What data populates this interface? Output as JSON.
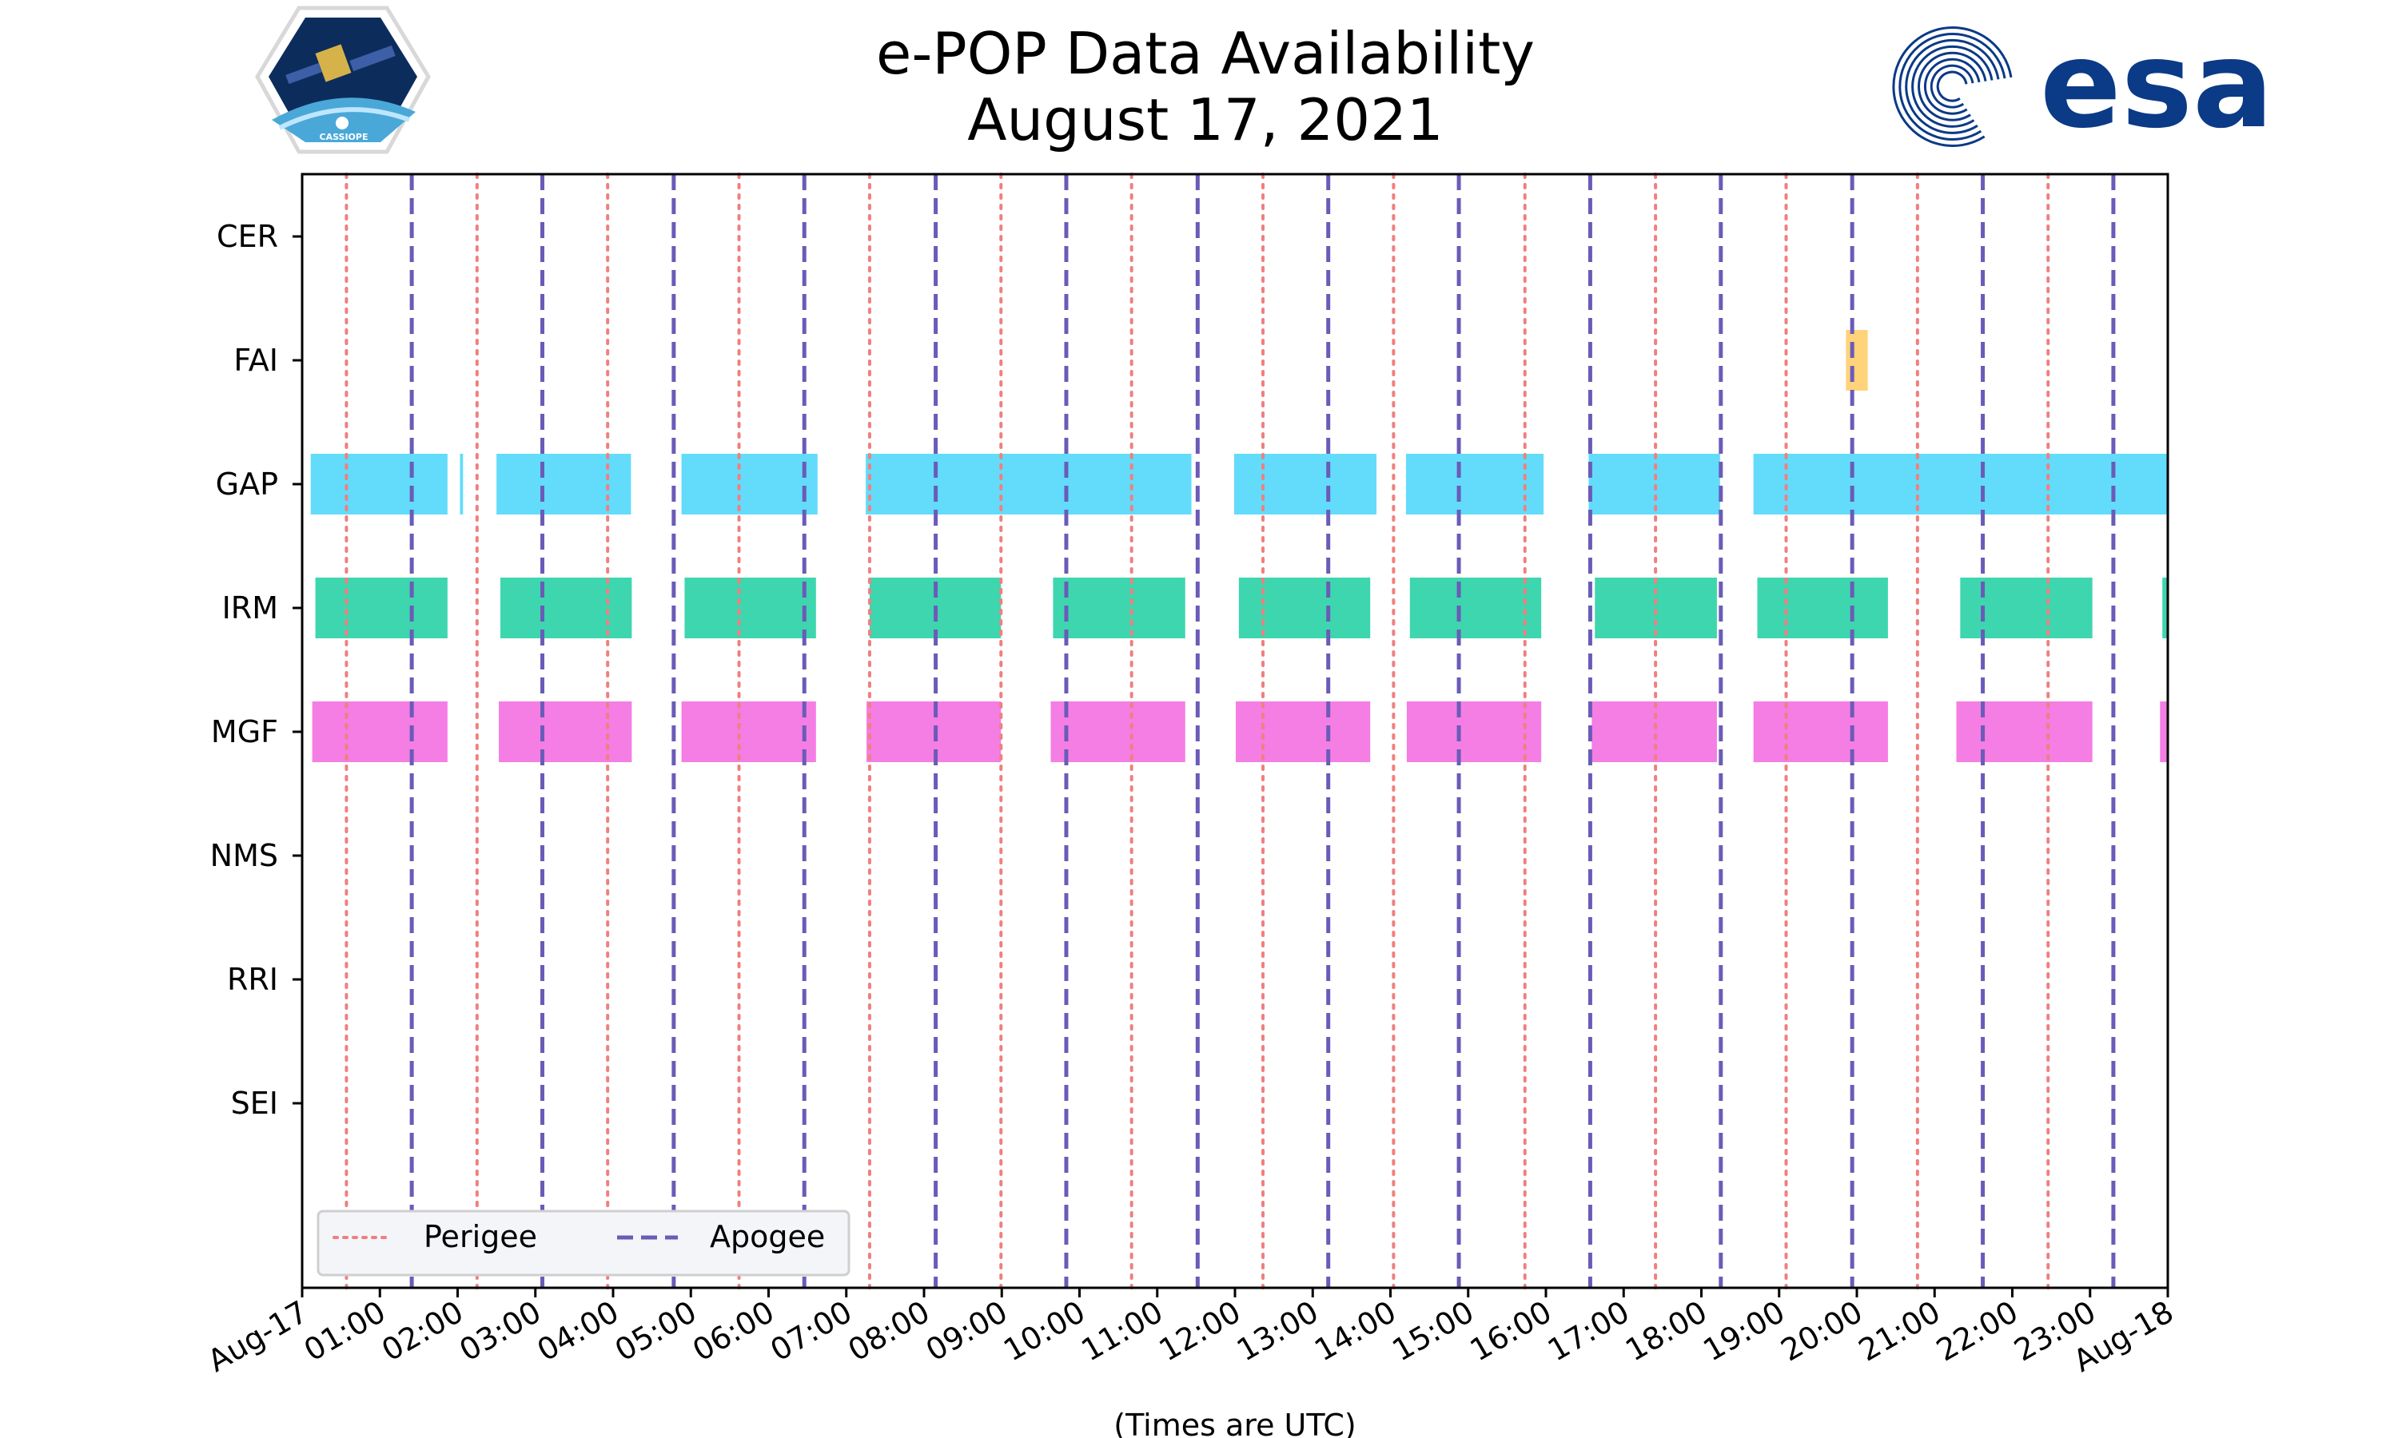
{
  "header": {
    "left_logo": {
      "name": "CASSIOPE mission patch",
      "text": "CASSIOPE"
    },
    "right_logo": {
      "name": "ESA logo",
      "text": "esa"
    }
  },
  "chart_data": {
    "type": "timeline",
    "title": [
      "e-POP Data Availability",
      "August 17, 2021"
    ],
    "xlabel": "(Times are UTC)",
    "x_range_hours": [
      0,
      24
    ],
    "x_ticks": [
      {
        "h": 0,
        "label": "Aug-17"
      },
      {
        "h": 1,
        "label": "01:00"
      },
      {
        "h": 2,
        "label": "02:00"
      },
      {
        "h": 3,
        "label": "03:00"
      },
      {
        "h": 4,
        "label": "04:00"
      },
      {
        "h": 5,
        "label": "05:00"
      },
      {
        "h": 6,
        "label": "06:00"
      },
      {
        "h": 7,
        "label": "07:00"
      },
      {
        "h": 8,
        "label": "08:00"
      },
      {
        "h": 9,
        "label": "09:00"
      },
      {
        "h": 10,
        "label": "10:00"
      },
      {
        "h": 11,
        "label": "11:00"
      },
      {
        "h": 12,
        "label": "12:00"
      },
      {
        "h": 13,
        "label": "13:00"
      },
      {
        "h": 14,
        "label": "14:00"
      },
      {
        "h": 15,
        "label": "15:00"
      },
      {
        "h": 16,
        "label": "16:00"
      },
      {
        "h": 17,
        "label": "17:00"
      },
      {
        "h": 18,
        "label": "18:00"
      },
      {
        "h": 19,
        "label": "19:00"
      },
      {
        "h": 20,
        "label": "20:00"
      },
      {
        "h": 21,
        "label": "21:00"
      },
      {
        "h": 22,
        "label": "22:00"
      },
      {
        "h": 23,
        "label": "23:00"
      },
      {
        "h": 24,
        "label": "Aug-18"
      }
    ],
    "instruments": [
      "CER",
      "FAI",
      "GAP",
      "IRM",
      "MGF",
      "NMS",
      "RRI",
      "SEI"
    ],
    "series": [
      {
        "name": "CER",
        "color": "#cccccc",
        "intervals": []
      },
      {
        "name": "FAI",
        "color": "#ffd37a",
        "intervals": [
          [
            19.86,
            20.14
          ]
        ]
      },
      {
        "name": "GAP",
        "color": "#62dcfa",
        "intervals": [
          [
            0.11,
            1.87
          ],
          [
            2.03,
            2.07
          ],
          [
            2.5,
            4.23
          ],
          [
            4.88,
            6.63
          ],
          [
            7.25,
            11.44
          ],
          [
            11.99,
            13.82
          ],
          [
            14.2,
            15.97
          ],
          [
            16.55,
            18.24
          ],
          [
            18.67,
            24.0
          ]
        ]
      },
      {
        "name": "IRM",
        "color": "#3ed6ae",
        "intervals": [
          [
            0.17,
            1.87
          ],
          [
            2.55,
            4.24
          ],
          [
            4.92,
            6.61
          ],
          [
            7.3,
            8.99
          ],
          [
            9.66,
            11.36
          ],
          [
            12.05,
            13.74
          ],
          [
            14.25,
            15.94
          ],
          [
            16.63,
            18.2
          ],
          [
            18.72,
            20.4
          ],
          [
            21.33,
            23.03
          ],
          [
            23.93,
            24.0
          ]
        ]
      },
      {
        "name": "MGF",
        "color": "#f47ee4",
        "intervals": [
          [
            0.13,
            1.87
          ],
          [
            2.53,
            4.24
          ],
          [
            4.88,
            6.61
          ],
          [
            7.26,
            8.99
          ],
          [
            9.63,
            11.36
          ],
          [
            12.01,
            13.74
          ],
          [
            14.21,
            15.94
          ],
          [
            16.59,
            18.2
          ],
          [
            18.67,
            20.4
          ],
          [
            21.28,
            23.03
          ],
          [
            23.9,
            24.0
          ]
        ]
      },
      {
        "name": "NMS",
        "color": "#cccccc",
        "intervals": []
      },
      {
        "name": "RRI",
        "color": "#cccccc",
        "intervals": []
      },
      {
        "name": "SEI",
        "color": "#cccccc",
        "intervals": []
      }
    ],
    "perigee_hours": [
      0.57,
      2.25,
      3.93,
      5.62,
      7.3,
      8.99,
      10.67,
      12.36,
      14.04,
      15.73,
      17.41,
      19.09,
      20.78,
      22.46
    ],
    "apogee_hours": [
      1.41,
      3.09,
      4.78,
      6.46,
      8.15,
      9.83,
      11.52,
      13.2,
      14.88,
      16.57,
      18.25,
      19.94,
      21.62,
      23.3
    ],
    "legend": {
      "placement": "lower-left",
      "entries": [
        {
          "label": "Perigee",
          "color": "#f07f7f",
          "style": "dotted"
        },
        {
          "label": "Apogee",
          "color": "#6b5bb8",
          "style": "dashed"
        }
      ]
    },
    "colors": {
      "perigee": "#f07f7f",
      "apogee": "#6b5bb8",
      "legend_bg": "#f4f5f9"
    }
  }
}
